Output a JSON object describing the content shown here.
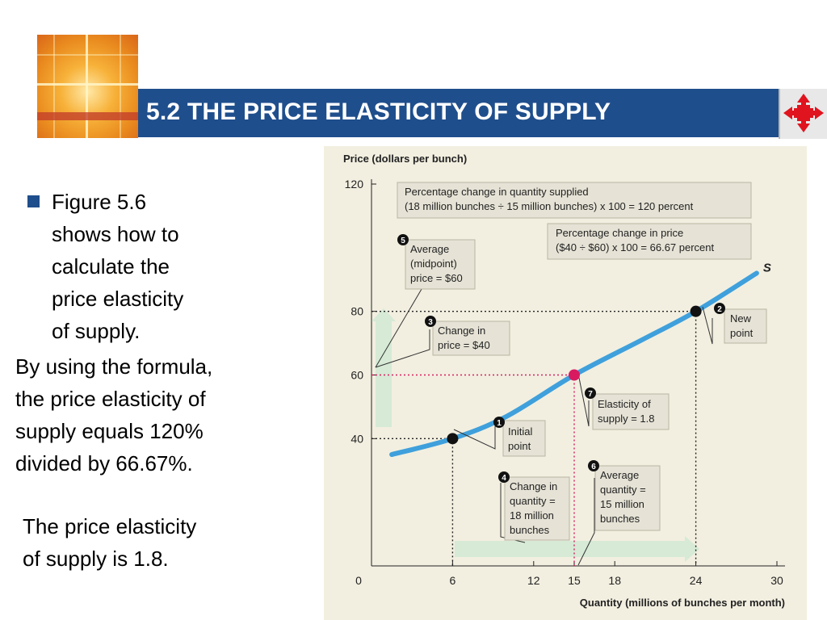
{
  "slide": {
    "title": "5.2 THE PRICE ELASTICITY OF SUPPLY",
    "bullet_lines": [
      "Figure 5.6",
      "shows how to",
      "calculate the",
      "price elasticity",
      "of supply."
    ],
    "formula_lines": [
      "By using the formula,",
      "the price elasticity of",
      "supply equals 120%",
      "divided by 66.67%."
    ],
    "result_lines": [
      "The price elasticity",
      "of supply is 1.8."
    ]
  },
  "colors": {
    "title_bar": "#1f4e8c",
    "curve": "#3fa0dc",
    "midpoint": "#d81b60",
    "arrow": "#d6ead6",
    "panel": "#f2efe0",
    "callout": "#e6e3d6"
  },
  "chart_data": {
    "type": "line",
    "ylabel": "Price (dollars per bunch)",
    "xlabel": "Quantity (millions of bunches per month)",
    "xlim": [
      0,
      30
    ],
    "ylim": [
      0,
      120
    ],
    "x_ticks": [
      "0",
      "6",
      "12",
      "15",
      "18",
      "24",
      "30"
    ],
    "y_ticks": [
      "40",
      "60",
      "80",
      "120"
    ],
    "series": [
      {
        "name": "S",
        "x": [
          1.5,
          6,
          10,
          15,
          20,
          24,
          28.5
        ],
        "y": [
          35,
          40,
          47,
          60,
          71,
          80,
          92
        ]
      }
    ],
    "points": [
      {
        "x": 6,
        "y": 40,
        "label": "Initial point"
      },
      {
        "x": 15,
        "y": 60,
        "label": "Elasticity of supply = 1.8"
      },
      {
        "x": 24,
        "y": 80,
        "label": "New point"
      }
    ],
    "annotations": {
      "quantity_change": [
        "Percentage change in quantity supplied",
        "(18 million bunches ÷ 15 million bunches) x 100 = 120 percent"
      ],
      "price_change": [
        "Percentage change in price",
        "($40 ÷ $60) x 100 = 66.67 percent"
      ],
      "c1": [
        "Initial",
        "point"
      ],
      "c2": [
        "New",
        "point"
      ],
      "c3": [
        "Change in",
        "price = $40"
      ],
      "c4": [
        "Change in",
        "quantity =",
        "18 million",
        "bunches"
      ],
      "c5": [
        "Average",
        "(midpoint)",
        "price = $60"
      ],
      "c6": [
        "Average",
        "quantity =",
        "15 million",
        "bunches"
      ],
      "c7": [
        "Elasticity of",
        "supply = 1.8"
      ],
      "n1": "1",
      "n2": "2",
      "n3": "3",
      "n4": "4",
      "n5": "5",
      "n6": "6",
      "n7": "7"
    }
  }
}
